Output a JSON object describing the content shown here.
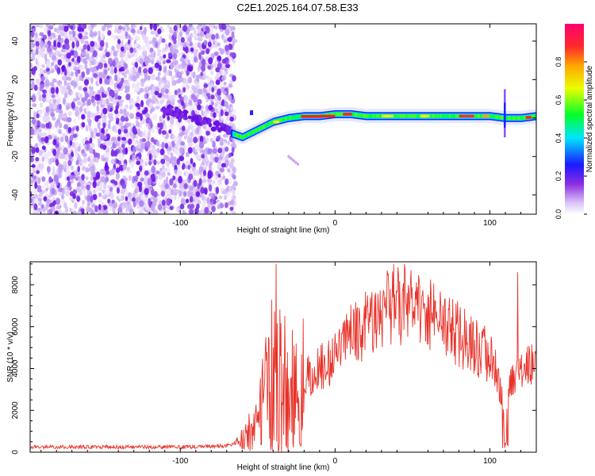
{
  "title": "C2E1.2025.164.07.58.E33",
  "chart_data": [
    {
      "type": "heatmap",
      "name": "spectrogram",
      "xlabel": "Height of straight line (km)",
      "ylabel": "Frequency (Hz)",
      "xlim": [
        -197,
        130
      ],
      "ylim": [
        -50,
        49
      ],
      "xticks": [
        "-100",
        "0",
        "100"
      ],
      "xtick_values": [
        -100,
        0,
        100
      ],
      "yticks": [
        "40",
        "20",
        "0",
        "-20",
        "-40"
      ],
      "ytick_values": [
        40,
        20,
        0,
        -20,
        -40
      ],
      "colorbar": {
        "label": "Normalized spectral amplitude",
        "range": [
          0,
          1
        ],
        "ticks": [
          "0.0",
          "0.2",
          "0.4",
          "0.6",
          "0.8"
        ],
        "tick_values": [
          0.0,
          0.2,
          0.4,
          0.6,
          0.8
        ],
        "colors": [
          "#ffffff",
          "#c9a8f5",
          "#7b1fe8",
          "#1a1aff",
          "#00e5ff",
          "#00ff2a",
          "#eaff00",
          "#ffa500",
          "#ff2a2a",
          "#ff0070"
        ]
      },
      "noise_region_x": [
        -197,
        -65
      ],
      "ridge": {
        "x": [
          -67,
          -60,
          -50,
          -40,
          -30,
          -20,
          -10,
          0,
          10,
          20,
          40,
          60,
          80,
          100,
          110,
          120,
          130
        ],
        "y": [
          -8,
          -10,
          -6,
          -2,
          0,
          1,
          1,
          2,
          2,
          1,
          1,
          1,
          1,
          1,
          0,
          0,
          1
        ]
      }
    },
    {
      "type": "line",
      "name": "snr",
      "xlabel": "Height of straight line (km)",
      "ylabel": "SNR (10 * v/v)",
      "xlim": [
        -197,
        130
      ],
      "ylim": [
        0,
        9100
      ],
      "xticks": [
        "-100",
        "0",
        "100"
      ],
      "xtick_values": [
        -100,
        0,
        100
      ],
      "yticks": [
        "0",
        "2000",
        "4000",
        "6000",
        "8000"
      ],
      "ytick_values": [
        0,
        2000,
        4000,
        6000,
        8000
      ],
      "color": "#e8332a",
      "envelope": {
        "x": [
          -197,
          -150,
          -100,
          -70,
          -60,
          -50,
          -45,
          -40,
          -38,
          -35,
          -30,
          -25,
          -20,
          -10,
          0,
          10,
          20,
          30,
          40,
          50,
          60,
          70,
          80,
          90,
          100,
          105,
          110,
          115,
          120,
          125,
          130
        ],
        "y": [
          250,
          250,
          250,
          300,
          600,
          1500,
          2800,
          4200,
          5000,
          4000,
          3000,
          3000,
          3500,
          4000,
          4600,
          5500,
          6200,
          6800,
          7000,
          6800,
          6500,
          6200,
          5600,
          5000,
          4600,
          3600,
          2000,
          3600,
          4000,
          4200,
          4000
        ]
      },
      "peaks": [
        {
          "x": -38,
          "y": 9000
        },
        {
          "x": 38,
          "y": 9000
        },
        {
          "x": 45,
          "y": 9000
        },
        {
          "x": 118,
          "y": 8600
        }
      ]
    }
  ]
}
